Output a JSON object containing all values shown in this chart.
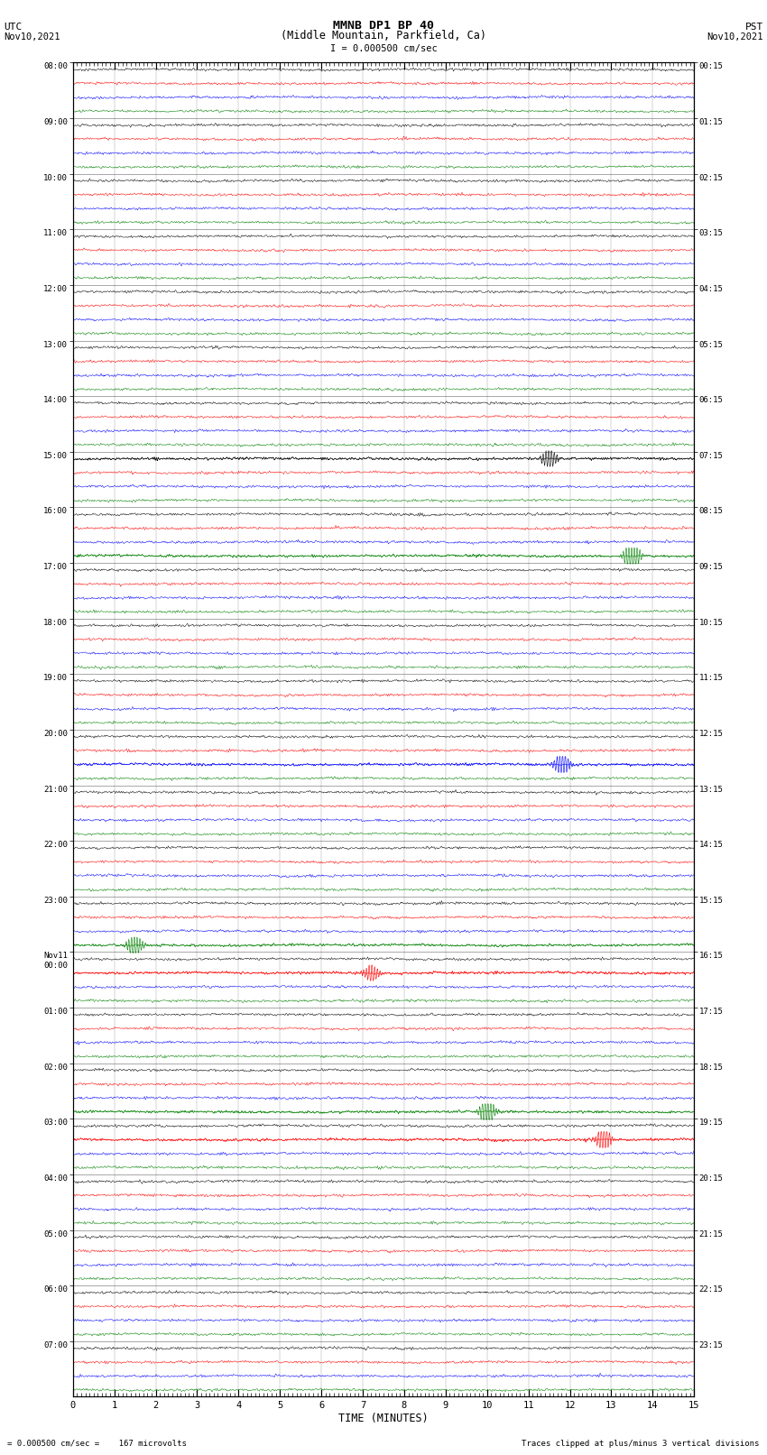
{
  "title_line1": "MMNB DP1 BP 40",
  "title_line2": "(Middle Mountain, Parkfield, Ca)",
  "scale_text": "I = 0.000500 cm/sec",
  "xlabel": "TIME (MINUTES)",
  "footer_left": "= 0.000500 cm/sec =    167 microvolts",
  "footer_right": "Traces clipped at plus/minus 3 vertical divisions",
  "time_minutes": 15,
  "trace_colors": [
    "black",
    "red",
    "blue",
    "green"
  ],
  "bg_color": "white",
  "utc_labels": [
    "08:00",
    "09:00",
    "10:00",
    "11:00",
    "12:00",
    "13:00",
    "14:00",
    "15:00",
    "16:00",
    "17:00",
    "18:00",
    "19:00",
    "20:00",
    "21:00",
    "22:00",
    "23:00",
    "Nov11\n00:00",
    "01:00",
    "02:00",
    "03:00",
    "04:00",
    "05:00",
    "06:00",
    "07:00"
  ],
  "pst_labels": [
    "00:15",
    "01:15",
    "02:15",
    "03:15",
    "04:15",
    "05:15",
    "06:15",
    "07:15",
    "08:15",
    "09:15",
    "10:15",
    "11:15",
    "12:15",
    "13:15",
    "14:15",
    "15:15",
    "16:15",
    "17:15",
    "18:15",
    "19:15",
    "20:15",
    "21:15",
    "22:15",
    "23:15"
  ],
  "n_hours": 24,
  "traces_per_hour": 4,
  "noise_amplitude": 0.18,
  "n_points": 1800
}
